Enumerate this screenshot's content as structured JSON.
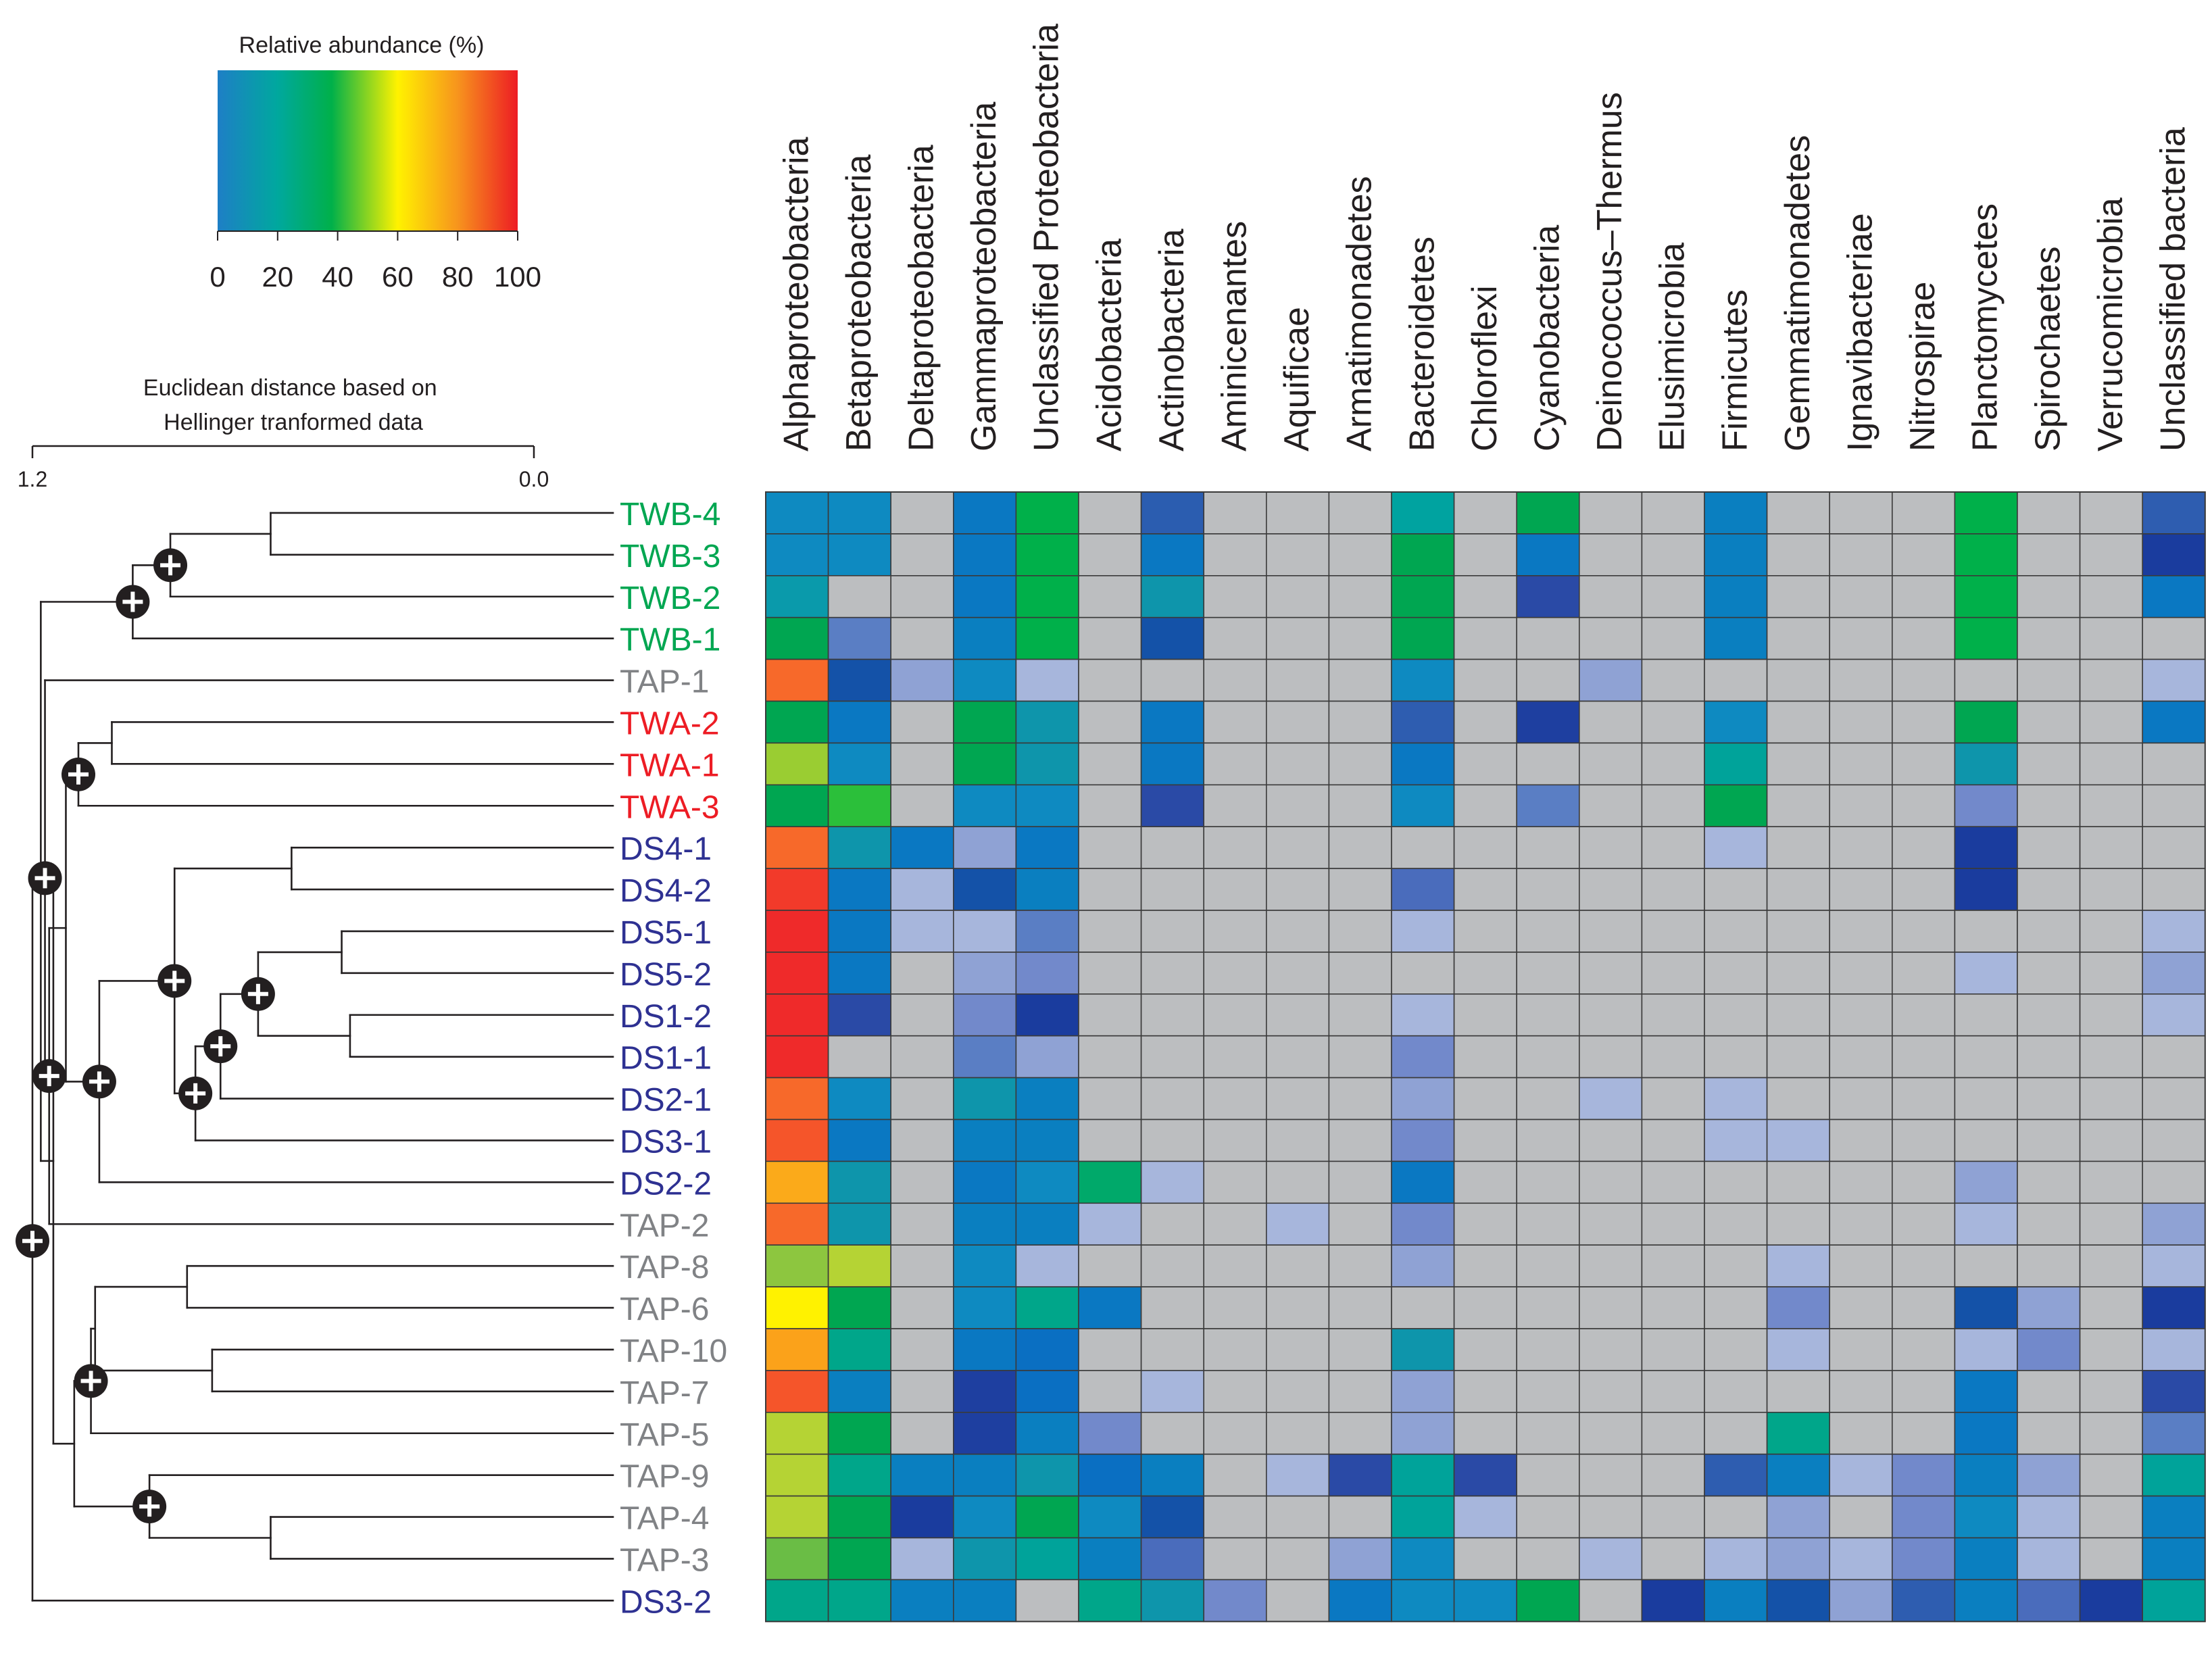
{
  "chart_data": {
    "type": "heatmap",
    "legend": {
      "title": "Relative abundance (%)",
      "ticks": [
        "0",
        "20",
        "40",
        "60",
        "80",
        "100"
      ],
      "range": [
        0,
        100
      ],
      "colormap": [
        {
          "at": 0,
          "color": "#1e7fc6"
        },
        {
          "at": 20,
          "color": "#00a89e"
        },
        {
          "at": 38,
          "color": "#00b04a"
        },
        {
          "at": 60,
          "color": "#fff200"
        },
        {
          "at": 80,
          "color": "#f7941d"
        },
        {
          "at": 100,
          "color": "#ed1c24"
        }
      ]
    },
    "tree_title": "Euclidean distance based on Hellinger tranformed data",
    "scale_left": "1.2",
    "scale_right": "0.0",
    "columns": [
      "Alphaproteobacteria",
      "Betaproteobacteria",
      "Deltaproteobacteria",
      "Gammaproteobacteria",
      "Unclassified Proteobacteria",
      "Acidobacteria",
      "Actinobacteria",
      "Aminicenantes",
      "Aquificae",
      "Armatimonadetes",
      "Bacteroidetes",
      "Chloroflexi",
      "Cyanobacteria",
      "Deinococcus–Thermus",
      "Elusimicrobia",
      "Firmicutes",
      "Gemmatimonadetes",
      "Ignavibacteriae",
      "Nitrospirae",
      "Planctomycetes",
      "Spirochaetes",
      "Verrucomicrobia",
      "Unclassified bacteria"
    ],
    "rows": [
      {
        "label": "TWB-4",
        "group": "TWB"
      },
      {
        "label": "TWB-3",
        "group": "TWB"
      },
      {
        "label": "TWB-2",
        "group": "TWB"
      },
      {
        "label": "TWB-1",
        "group": "TWB"
      },
      {
        "label": "TAP-1",
        "group": "TAP"
      },
      {
        "label": "TWA-2",
        "group": "TWA"
      },
      {
        "label": "TWA-1",
        "group": "TWA"
      },
      {
        "label": "TWA-3",
        "group": "TWA"
      },
      {
        "label": "DS4-1",
        "group": "DS"
      },
      {
        "label": "DS4-2",
        "group": "DS"
      },
      {
        "label": "DS5-1",
        "group": "DS"
      },
      {
        "label": "DS5-2",
        "group": "DS"
      },
      {
        "label": "DS1-2",
        "group": "DS"
      },
      {
        "label": "DS1-1",
        "group": "DS"
      },
      {
        "label": "DS2-1",
        "group": "DS"
      },
      {
        "label": "DS3-1",
        "group": "DS"
      },
      {
        "label": "DS2-2",
        "group": "DS"
      },
      {
        "label": "TAP-2",
        "group": "TAP"
      },
      {
        "label": "TAP-8",
        "group": "TAP"
      },
      {
        "label": "TAP-6",
        "group": "TAP"
      },
      {
        "label": "TAP-10",
        "group": "TAP"
      },
      {
        "label": "TAP-7",
        "group": "TAP"
      },
      {
        "label": "TAP-5",
        "group": "TAP"
      },
      {
        "label": "TAP-9",
        "group": "TAP"
      },
      {
        "label": "TAP-4",
        "group": "TAP"
      },
      {
        "label": "TAP-3",
        "group": "TAP"
      },
      {
        "label": "DS3-2",
        "group": "DS"
      }
    ],
    "group_colors": {
      "TWB": "#00a651",
      "TAP": "#808285",
      "TWA": "#ed1c24",
      "DS": "#2e3192"
    },
    "absent_color": "#bcbec0",
    "cell_colors": [
      [
        "#0e8ac1",
        "#0e8ac1",
        "#bcbec0",
        "#0a78c2",
        "#00b04a",
        "#bcbec0",
        "#2b5db0",
        "#bcbec0",
        "#bcbec0",
        "#bcbec0",
        "#00a3a0",
        "#bcbec0",
        "#00a651",
        "#bcbec0",
        "#bcbec0",
        "#0a7fc0",
        "#bcbec0",
        "#bcbec0",
        "#bcbec0",
        "#00b04a",
        "#bcbec0",
        "#bcbec0",
        "#2e5db0"
      ],
      [
        "#0e8ac1",
        "#0e8ac1",
        "#bcbec0",
        "#0a78c2",
        "#00b04a",
        "#bcbec0",
        "#0a78c2",
        "#bcbec0",
        "#bcbec0",
        "#bcbec0",
        "#00a651",
        "#bcbec0",
        "#0a78c2",
        "#bcbec0",
        "#bcbec0",
        "#0a7fc0",
        "#bcbec0",
        "#bcbec0",
        "#bcbec0",
        "#00b04a",
        "#bcbec0",
        "#bcbec0",
        "#1a3c9e"
      ],
      [
        "#0a9aab",
        "#bcbec0",
        "#bcbec0",
        "#0a78c2",
        "#00b04a",
        "#bcbec0",
        "#0e95ab",
        "#bcbec0",
        "#bcbec0",
        "#bcbec0",
        "#00a651",
        "#bcbec0",
        "#2a4aa6",
        "#bcbec0",
        "#bcbec0",
        "#0a7fc0",
        "#bcbec0",
        "#bcbec0",
        "#bcbec0",
        "#00b04a",
        "#bcbec0",
        "#bcbec0",
        "#0a78c2"
      ],
      [
        "#00a651",
        "#5a7ec4",
        "#bcbec0",
        "#0a7fc0",
        "#00b04a",
        "#bcbec0",
        "#1452a8",
        "#bcbec0",
        "#bcbec0",
        "#bcbec0",
        "#00a651",
        "#bcbec0",
        "#bcbec0",
        "#bcbec0",
        "#bcbec0",
        "#0a7fc0",
        "#bcbec0",
        "#bcbec0",
        "#bcbec0",
        "#00b04a",
        "#bcbec0",
        "#bcbec0",
        "#bcbec0"
      ],
      [
        "#f7692a",
        "#1452a8",
        "#8fa2d4",
        "#0e8ac1",
        "#a7b6dc",
        "#bcbec0",
        "#bcbec0",
        "#bcbec0",
        "#bcbec0",
        "#bcbec0",
        "#0e8ac1",
        "#bcbec0",
        "#bcbec0",
        "#8fa2d4",
        "#bcbec0",
        "#bcbec0",
        "#bcbec0",
        "#bcbec0",
        "#bcbec0",
        "#bcbec0",
        "#bcbec0",
        "#bcbec0",
        "#a7b6dc"
      ],
      [
        "#00a651",
        "#0a78c2",
        "#bcbec0",
        "#00a651",
        "#0e95ab",
        "#bcbec0",
        "#0a78c2",
        "#bcbec0",
        "#bcbec0",
        "#bcbec0",
        "#2e5db0",
        "#bcbec0",
        "#1e3fa0",
        "#bcbec0",
        "#bcbec0",
        "#0e8ac1",
        "#bcbec0",
        "#bcbec0",
        "#bcbec0",
        "#00a651",
        "#bcbec0",
        "#bcbec0",
        "#0a78c2"
      ],
      [
        "#9acd32",
        "#0e8ac1",
        "#bcbec0",
        "#00a651",
        "#0e95ab",
        "#bcbec0",
        "#0a78c2",
        "#bcbec0",
        "#bcbec0",
        "#bcbec0",
        "#0a78c2",
        "#bcbec0",
        "#bcbec0",
        "#bcbec0",
        "#bcbec0",
        "#00a39a",
        "#bcbec0",
        "#bcbec0",
        "#bcbec0",
        "#0e95ab",
        "#bcbec0",
        "#bcbec0",
        "#bcbec0"
      ],
      [
        "#00a651",
        "#2bbf3a",
        "#bcbec0",
        "#0e8ac1",
        "#0e8ac1",
        "#bcbec0",
        "#2a4aa6",
        "#bcbec0",
        "#bcbec0",
        "#bcbec0",
        "#0e8ac1",
        "#bcbec0",
        "#5a7ec4",
        "#bcbec0",
        "#bcbec0",
        "#00a651",
        "#bcbec0",
        "#bcbec0",
        "#bcbec0",
        "#7289cb",
        "#bcbec0",
        "#bcbec0",
        "#bcbec0"
      ],
      [
        "#f7692a",
        "#0e95ab",
        "#0a78c2",
        "#8fa2d4",
        "#0a78c2",
        "#bcbec0",
        "#bcbec0",
        "#bcbec0",
        "#bcbec0",
        "#bcbec0",
        "#bcbec0",
        "#bcbec0",
        "#bcbec0",
        "#bcbec0",
        "#bcbec0",
        "#a7b6dc",
        "#bcbec0",
        "#bcbec0",
        "#bcbec0",
        "#1a3c9e",
        "#bcbec0",
        "#bcbec0",
        "#bcbec0"
      ],
      [
        "#f23a2a",
        "#0a78c2",
        "#a7b6dc",
        "#1452a8",
        "#0a7fc0",
        "#bcbec0",
        "#bcbec0",
        "#bcbec0",
        "#bcbec0",
        "#bcbec0",
        "#4a6cbc",
        "#bcbec0",
        "#bcbec0",
        "#bcbec0",
        "#bcbec0",
        "#bcbec0",
        "#bcbec0",
        "#bcbec0",
        "#bcbec0",
        "#1a3c9e",
        "#bcbec0",
        "#bcbec0",
        "#bcbec0"
      ],
      [
        "#ef2a2a",
        "#0a78c2",
        "#a7b6dc",
        "#a7b6dc",
        "#5a7ec4",
        "#bcbec0",
        "#bcbec0",
        "#bcbec0",
        "#bcbec0",
        "#bcbec0",
        "#a7b6dc",
        "#bcbec0",
        "#bcbec0",
        "#bcbec0",
        "#bcbec0",
        "#bcbec0",
        "#bcbec0",
        "#bcbec0",
        "#bcbec0",
        "#bcbec0",
        "#bcbec0",
        "#bcbec0",
        "#a7b6dc"
      ],
      [
        "#ef2a2a",
        "#0a78c2",
        "#bcbec0",
        "#8fa2d4",
        "#7289cb",
        "#bcbec0",
        "#bcbec0",
        "#bcbec0",
        "#bcbec0",
        "#bcbec0",
        "#bcbec0",
        "#bcbec0",
        "#bcbec0",
        "#bcbec0",
        "#bcbec0",
        "#bcbec0",
        "#bcbec0",
        "#bcbec0",
        "#bcbec0",
        "#a7b6dc",
        "#bcbec0",
        "#bcbec0",
        "#8fa2d4"
      ],
      [
        "#ef2a2a",
        "#2a4aa6",
        "#bcbec0",
        "#7289cb",
        "#1a3c9e",
        "#bcbec0",
        "#bcbec0",
        "#bcbec0",
        "#bcbec0",
        "#bcbec0",
        "#a7b6dc",
        "#bcbec0",
        "#bcbec0",
        "#bcbec0",
        "#bcbec0",
        "#bcbec0",
        "#bcbec0",
        "#bcbec0",
        "#bcbec0",
        "#bcbec0",
        "#bcbec0",
        "#bcbec0",
        "#a7b6dc"
      ],
      [
        "#ef2a2a",
        "#bcbec0",
        "#bcbec0",
        "#5a7ec4",
        "#8fa2d4",
        "#bcbec0",
        "#bcbec0",
        "#bcbec0",
        "#bcbec0",
        "#bcbec0",
        "#7289cb",
        "#bcbec0",
        "#bcbec0",
        "#bcbec0",
        "#bcbec0",
        "#bcbec0",
        "#bcbec0",
        "#bcbec0",
        "#bcbec0",
        "#bcbec0",
        "#bcbec0",
        "#bcbec0",
        "#bcbec0"
      ],
      [
        "#f7692a",
        "#0e8ac1",
        "#bcbec0",
        "#0e95ab",
        "#0a7fc0",
        "#bcbec0",
        "#bcbec0",
        "#bcbec0",
        "#bcbec0",
        "#bcbec0",
        "#8fa2d4",
        "#bcbec0",
        "#bcbec0",
        "#a7b6dc",
        "#bcbec0",
        "#a7b6dc",
        "#bcbec0",
        "#bcbec0",
        "#bcbec0",
        "#bcbec0",
        "#bcbec0",
        "#bcbec0",
        "#bcbec0"
      ],
      [
        "#f5552a",
        "#0a78c2",
        "#bcbec0",
        "#0a7fc0",
        "#0a7fc0",
        "#bcbec0",
        "#bcbec0",
        "#bcbec0",
        "#bcbec0",
        "#bcbec0",
        "#7289cb",
        "#bcbec0",
        "#bcbec0",
        "#bcbec0",
        "#bcbec0",
        "#a7b6dc",
        "#a7b6dc",
        "#bcbec0",
        "#bcbec0",
        "#bcbec0",
        "#bcbec0",
        "#bcbec0",
        "#bcbec0"
      ],
      [
        "#fbaa1a",
        "#0e95ab",
        "#bcbec0",
        "#0a78c2",
        "#0e8ac1",
        "#00a96a",
        "#a7b6dc",
        "#bcbec0",
        "#bcbec0",
        "#bcbec0",
        "#0a78c2",
        "#bcbec0",
        "#bcbec0",
        "#bcbec0",
        "#bcbec0",
        "#bcbec0",
        "#bcbec0",
        "#bcbec0",
        "#bcbec0",
        "#8fa2d4",
        "#bcbec0",
        "#bcbec0",
        "#bcbec0"
      ],
      [
        "#f7692a",
        "#0e95ab",
        "#bcbec0",
        "#0a7fc0",
        "#0a7fc0",
        "#a7b6dc",
        "#bcbec0",
        "#bcbec0",
        "#a7b6dc",
        "#bcbec0",
        "#7289cb",
        "#bcbec0",
        "#bcbec0",
        "#bcbec0",
        "#bcbec0",
        "#bcbec0",
        "#bcbec0",
        "#bcbec0",
        "#bcbec0",
        "#a7b6dc",
        "#bcbec0",
        "#bcbec0",
        "#8fa2d4"
      ],
      [
        "#8dc63f",
        "#b5d334",
        "#bcbec0",
        "#0e8ac1",
        "#a7b6dc",
        "#bcbec0",
        "#bcbec0",
        "#bcbec0",
        "#bcbec0",
        "#bcbec0",
        "#8fa2d4",
        "#bcbec0",
        "#bcbec0",
        "#bcbec0",
        "#bcbec0",
        "#bcbec0",
        "#a7b6dc",
        "#bcbec0",
        "#bcbec0",
        "#bcbec0",
        "#bcbec0",
        "#bcbec0",
        "#a7b6dc"
      ],
      [
        "#fff200",
        "#00a651",
        "#bcbec0",
        "#0e8ac1",
        "#00a68a",
        "#0a78c2",
        "#bcbec0",
        "#bcbec0",
        "#bcbec0",
        "#bcbec0",
        "#bcbec0",
        "#bcbec0",
        "#bcbec0",
        "#bcbec0",
        "#bcbec0",
        "#bcbec0",
        "#7289cb",
        "#bcbec0",
        "#bcbec0",
        "#1452a8",
        "#8fa2d4",
        "#bcbec0",
        "#1a3c9e"
      ],
      [
        "#fba21a",
        "#00a68a",
        "#bcbec0",
        "#0a78c2",
        "#0a6fc2",
        "#bcbec0",
        "#bcbec0",
        "#bcbec0",
        "#bcbec0",
        "#bcbec0",
        "#0e95ab",
        "#bcbec0",
        "#bcbec0",
        "#bcbec0",
        "#bcbec0",
        "#bcbec0",
        "#a7b6dc",
        "#bcbec0",
        "#bcbec0",
        "#a7b6dc",
        "#7289cb",
        "#bcbec0",
        "#a7b6dc"
      ],
      [
        "#f5552a",
        "#0a7fc0",
        "#bcbec0",
        "#1e3fa0",
        "#0a6fc2",
        "#bcbec0",
        "#a7b6dc",
        "#bcbec0",
        "#bcbec0",
        "#bcbec0",
        "#8fa2d4",
        "#bcbec0",
        "#bcbec0",
        "#bcbec0",
        "#bcbec0",
        "#bcbec0",
        "#bcbec0",
        "#bcbec0",
        "#bcbec0",
        "#0a78c2",
        "#bcbec0",
        "#bcbec0",
        "#2a4aa6"
      ],
      [
        "#b5d334",
        "#00a651",
        "#bcbec0",
        "#1e3fa0",
        "#0a7fc0",
        "#7289cb",
        "#bcbec0",
        "#bcbec0",
        "#bcbec0",
        "#bcbec0",
        "#8fa2d4",
        "#bcbec0",
        "#bcbec0",
        "#bcbec0",
        "#bcbec0",
        "#bcbec0",
        "#00a68a",
        "#bcbec0",
        "#bcbec0",
        "#0a78c2",
        "#bcbec0",
        "#bcbec0",
        "#5a7ec4"
      ],
      [
        "#b5d334",
        "#00a68a",
        "#0a7fc0",
        "#0a7fc0",
        "#0e95ab",
        "#0a6fc2",
        "#0a7fc0",
        "#bcbec0",
        "#a7b6dc",
        "#2a4aa6",
        "#00a39a",
        "#2a4aa6",
        "#bcbec0",
        "#bcbec0",
        "#bcbec0",
        "#2e5db0",
        "#0a7fc0",
        "#a7b6dc",
        "#7289cb",
        "#0a7fc0",
        "#8fa2d4",
        "#bcbec0",
        "#00a39a"
      ],
      [
        "#b5d334",
        "#00a651",
        "#1a3c9e",
        "#0e8ac1",
        "#00a651",
        "#0e8ac1",
        "#1452a8",
        "#bcbec0",
        "#bcbec0",
        "#bcbec0",
        "#00a39a",
        "#a7b6dc",
        "#bcbec0",
        "#bcbec0",
        "#bcbec0",
        "#bcbec0",
        "#8fa2d4",
        "#bcbec0",
        "#7289cb",
        "#0e8ac1",
        "#a7b6dc",
        "#bcbec0",
        "#0a7fc0"
      ],
      [
        "#6abd45",
        "#00a651",
        "#a7b6dc",
        "#0e95ab",
        "#00a39a",
        "#0a7fc0",
        "#4a6cbc",
        "#bcbec0",
        "#bcbec0",
        "#8fa2d4",
        "#0e8ac1",
        "#bcbec0",
        "#bcbec0",
        "#a7b6dc",
        "#bcbec0",
        "#a7b6dc",
        "#8fa2d4",
        "#a7b6dc",
        "#7289cb",
        "#0a7fc0",
        "#a7b6dc",
        "#bcbec0",
        "#0a7fc0"
      ],
      [
        "#00a68a",
        "#00a68a",
        "#0a7fc0",
        "#0a7fc0",
        "#bcbec0",
        "#00a68a",
        "#0e95ab",
        "#7289cb",
        "#bcbec0",
        "#0a78c2",
        "#0e8ac1",
        "#0e8ac1",
        "#00a651",
        "#bcbec0",
        "#1a3c9e",
        "#0a7fc0",
        "#1452a8",
        "#8fa2d4",
        "#2e5db0",
        "#0a7fc0",
        "#4a6cbc",
        "#1a3c9e",
        "#00a39a"
      ]
    ],
    "dendrogram_nodes": [
      {
        "children": [
          0,
          1
        ],
        "height": 0.63,
        "node": false
      },
      {
        "children": [
          "n0",
          2
        ],
        "height": 0.87,
        "node": true
      },
      {
        "children": [
          "n1",
          3
        ],
        "height": 0.96,
        "node": true
      },
      {
        "children": [
          5,
          6
        ],
        "height": 1.01,
        "node": false
      },
      {
        "children": [
          "n3",
          7
        ],
        "height": 1.09,
        "node": true
      },
      {
        "children": [
          8,
          9
        ],
        "height": 0.58,
        "node": false
      },
      {
        "children": [
          10,
          11
        ],
        "height": 0.46,
        "node": false
      },
      {
        "children": [
          12,
          13
        ],
        "height": 0.44,
        "node": false
      },
      {
        "children": [
          "n6",
          "n7"
        ],
        "height": 0.66,
        "node": true
      },
      {
        "children": [
          "n8",
          14
        ],
        "height": 0.75,
        "node": true
      },
      {
        "children": [
          "n9",
          15
        ],
        "height": 0.81,
        "node": true
      },
      {
        "children": [
          "n5",
          "n10"
        ],
        "height": 0.86,
        "node": true
      },
      {
        "children": [
          "n11",
          16
        ],
        "height": 1.04,
        "node": true
      },
      {
        "children": [
          "n4",
          "n12"
        ],
        "height": 1.12,
        "node": false
      },
      {
        "children": [
          "n13",
          17
        ],
        "height": 1.16,
        "node": true
      },
      {
        "children": [
          "n14",
          4
        ],
        "height": 1.17,
        "node": true
      },
      {
        "children": [
          18,
          19
        ],
        "height": 0.83,
        "node": false
      },
      {
        "children": [
          21,
          20
        ],
        "height": 0.77,
        "node": false
      },
      {
        "children": [
          "n16",
          "n17"
        ],
        "height": 1.05,
        "node": false
      },
      {
        "children": [
          "n18",
          22
        ],
        "height": 1.06,
        "node": true
      },
      {
        "children": [
          24,
          25
        ],
        "height": 0.63,
        "node": false
      },
      {
        "children": [
          23,
          "n20"
        ],
        "height": 0.92,
        "node": true
      },
      {
        "children": [
          "n19",
          "n21"
        ],
        "height": 1.1,
        "node": false
      },
      {
        "children": [
          "n15",
          "n22"
        ],
        "height": 1.15,
        "node": false
      },
      {
        "children": [
          "n2",
          "n23"
        ],
        "height": 1.18,
        "node": false
      },
      {
        "children": [
          "n24",
          26
        ],
        "height": 1.2,
        "node": true
      }
    ]
  }
}
